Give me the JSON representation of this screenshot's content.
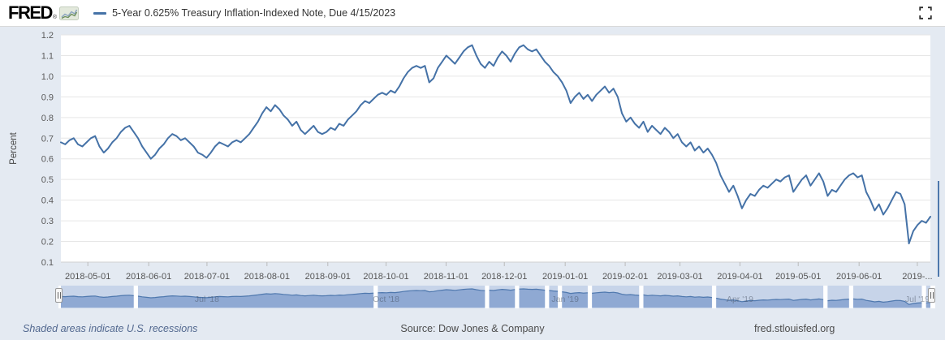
{
  "header": {
    "logo": "FRED",
    "trademark": "®",
    "legend_label": "5-Year 0.625% Treasury Inflation-Indexed Note, Due 4/15/2023"
  },
  "chart_data": {
    "type": "line",
    "title": "5-Year 0.625% Treasury Inflation-Indexed Note, Due 4/15/2023",
    "ylabel": "Percent",
    "ylim": [
      0.1,
      1.2
    ],
    "grid": true,
    "legend_position": "top",
    "yticks": [
      "0.1",
      "0.2",
      "0.3",
      "0.4",
      "0.5",
      "0.6",
      "0.7",
      "0.8",
      "0.9",
      "1.0",
      "1.1",
      "1.2"
    ],
    "xticks": [
      {
        "label": "2018-05-01",
        "f": 0.031
      },
      {
        "label": "2018-06-01",
        "f": 0.101
      },
      {
        "label": "2018-07-01",
        "f": 0.168
      },
      {
        "label": "2018-08-01",
        "f": 0.237
      },
      {
        "label": "2018-09-01",
        "f": 0.307
      },
      {
        "label": "2018-10-01",
        "f": 0.374
      },
      {
        "label": "2018-11-01",
        "f": 0.443
      },
      {
        "label": "2018-12-01",
        "f": 0.51
      },
      {
        "label": "2019-01-01",
        "f": 0.58
      },
      {
        "label": "2019-02-01",
        "f": 0.649
      },
      {
        "label": "2019-03-01",
        "f": 0.712
      },
      {
        "label": "2019-04-01",
        "f": 0.781
      },
      {
        "label": "2019-05-01",
        "f": 0.848
      },
      {
        "label": "2019-06-01",
        "f": 0.918
      },
      {
        "label": "2019-...",
        "f": 0.985
      }
    ],
    "series": [
      {
        "name": "5-Year 0.625% Treasury Inflation-Indexed Note, Due 4/15/2023",
        "color": "#4572a7",
        "values": [
          0.68,
          0.67,
          0.69,
          0.7,
          0.67,
          0.66,
          0.68,
          0.7,
          0.71,
          0.66,
          0.63,
          0.65,
          0.68,
          0.7,
          0.73,
          0.75,
          0.76,
          0.73,
          0.7,
          0.66,
          0.63,
          0.6,
          0.62,
          0.65,
          0.67,
          0.7,
          0.72,
          0.71,
          0.69,
          0.7,
          0.68,
          0.66,
          0.63,
          0.62,
          0.605,
          0.63,
          0.66,
          0.68,
          0.67,
          0.66,
          0.68,
          0.69,
          0.68,
          0.7,
          0.72,
          0.75,
          0.78,
          0.82,
          0.85,
          0.83,
          0.86,
          0.84,
          0.81,
          0.79,
          0.76,
          0.78,
          0.74,
          0.72,
          0.74,
          0.76,
          0.73,
          0.72,
          0.73,
          0.75,
          0.74,
          0.77,
          0.76,
          0.79,
          0.81,
          0.83,
          0.86,
          0.88,
          0.87,
          0.89,
          0.91,
          0.92,
          0.91,
          0.93,
          0.92,
          0.95,
          0.99,
          1.02,
          1.04,
          1.05,
          1.04,
          1.05,
          0.97,
          0.99,
          1.04,
          1.07,
          1.1,
          1.08,
          1.06,
          1.09,
          1.12,
          1.14,
          1.15,
          1.1,
          1.06,
          1.04,
          1.07,
          1.05,
          1.09,
          1.12,
          1.1,
          1.07,
          1.11,
          1.14,
          1.15,
          1.13,
          1.12,
          1.13,
          1.1,
          1.07,
          1.05,
          1.02,
          1.0,
          0.97,
          0.93,
          0.87,
          0.9,
          0.92,
          0.89,
          0.91,
          0.88,
          0.91,
          0.93,
          0.95,
          0.92,
          0.94,
          0.9,
          0.82,
          0.78,
          0.8,
          0.77,
          0.75,
          0.78,
          0.73,
          0.76,
          0.74,
          0.72,
          0.75,
          0.73,
          0.7,
          0.72,
          0.68,
          0.66,
          0.68,
          0.64,
          0.66,
          0.63,
          0.65,
          0.62,
          0.58,
          0.52,
          0.48,
          0.44,
          0.47,
          0.42,
          0.36,
          0.4,
          0.43,
          0.42,
          0.45,
          0.47,
          0.46,
          0.48,
          0.5,
          0.49,
          0.51,
          0.52,
          0.44,
          0.47,
          0.5,
          0.52,
          0.47,
          0.5,
          0.53,
          0.49,
          0.42,
          0.45,
          0.44,
          0.47,
          0.5,
          0.52,
          0.53,
          0.51,
          0.52,
          0.44,
          0.4,
          0.35,
          0.38,
          0.33,
          0.36,
          0.4,
          0.44,
          0.43,
          0.38,
          0.19,
          0.25,
          0.28,
          0.3,
          0.29,
          0.32
        ]
      }
    ]
  },
  "navigator": {
    "labels": [
      {
        "text": "Jul '18",
        "f": 0.168
      },
      {
        "text": "Oct '18",
        "f": 0.374
      },
      {
        "text": "Jan '19",
        "f": 0.58
      },
      {
        "text": "Apr '19",
        "f": 0.781
      },
      {
        "text": "Jul '19",
        "f": 0.985
      }
    ],
    "gap_indices": [
      17,
      73,
      99,
      106,
      113,
      116,
      123,
      135,
      152,
      178,
      184,
      201
    ],
    "colors": {
      "track": "#c7d4e9",
      "fill": "#8fa9d3",
      "line": "#4f78ae",
      "base": "#ffffff"
    }
  },
  "footer": {
    "recession_note": "Shaded areas indicate U.S. recessions",
    "source": "Source: Dow Jones & Company",
    "site": "fred.stlouisfed.org"
  },
  "colors": {
    "background": "#e4eaf2",
    "plot_background": "#ffffff",
    "gridline": "#e6e6e6",
    "axis_text": "#5a5a5a",
    "series": "#4572a7"
  }
}
